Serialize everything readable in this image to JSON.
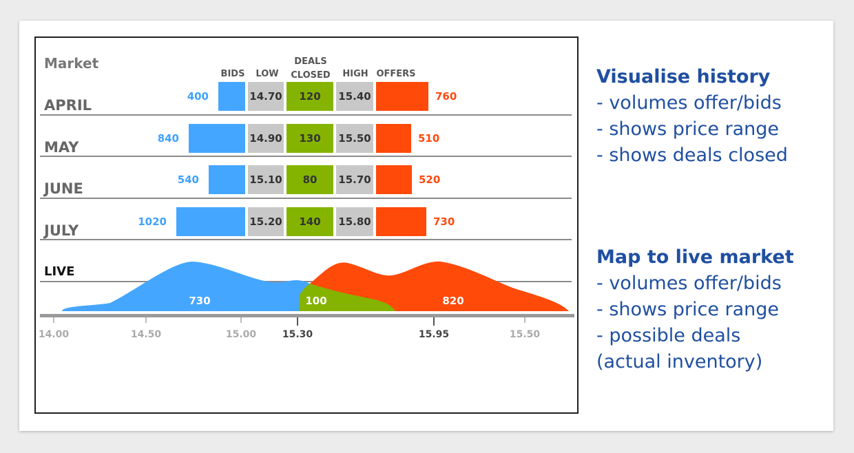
{
  "chart_data": {
    "type": "table",
    "title": "Market",
    "columns": [
      "BIDS",
      "LOW",
      "DEALS CLOSED",
      "HIGH",
      "OFFERS"
    ],
    "rows": [
      {
        "month": "APRIL",
        "bids": 400,
        "low": "14.70",
        "deals": 120,
        "high": "15.40",
        "offers": 760
      },
      {
        "month": "MAY",
        "bids": 840,
        "low": "14.90",
        "deals": 130,
        "high": "15.50",
        "offers": 510
      },
      {
        "month": "JUNE",
        "bids": 540,
        "low": "15.10",
        "deals": 80,
        "high": "15.70",
        "offers": 520
      },
      {
        "month": "JULY",
        "bids": 1020,
        "low": "15.20",
        "deals": 140,
        "high": "15.80",
        "offers": 730
      }
    ],
    "live": {
      "label": "LIVE",
      "bids_volume": 730,
      "deals_volume": 100,
      "offers_volume": 820,
      "axis_ticks": [
        "14.00",
        "14.50",
        "15.00",
        "15.30",
        "15.95",
        "15.50"
      ],
      "highlighted_ticks": [
        "15.30",
        "15.95"
      ]
    },
    "colors": {
      "bids": "#45a6ff",
      "offers": "#ff4a0a",
      "deals": "#84b400",
      "range": "#c8c8c8"
    }
  },
  "side": {
    "history_title": "Visualise history",
    "history_lines": [
      "- volumes offer/bids",
      "- shows price range",
      "- shows deals closed"
    ],
    "live_title": "Map to live market",
    "live_lines": [
      "- volumes offer/bids",
      "- shows price range",
      "- possible deals",
      "(actual inventory)"
    ]
  }
}
